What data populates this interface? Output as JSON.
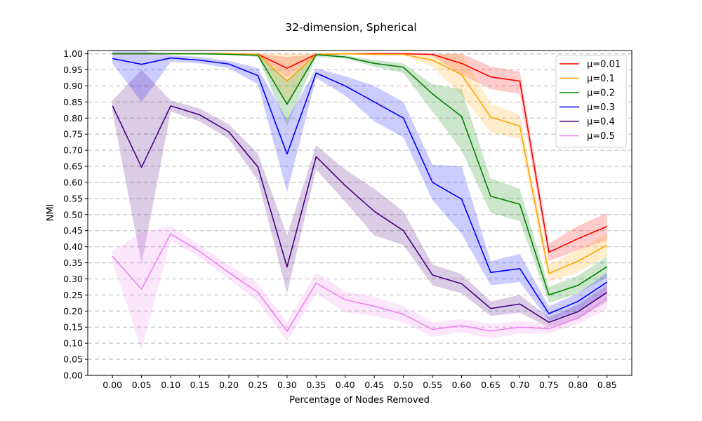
{
  "chart_data": {
    "type": "line",
    "title": "32-dimension, Spherical",
    "xlabel": "Percentage of Nodes Removed",
    "ylabel": "NMI",
    "x": [
      0.0,
      0.05,
      0.1,
      0.15,
      0.2,
      0.25,
      0.3,
      0.35,
      0.4,
      0.45,
      0.5,
      0.55,
      0.6,
      0.65,
      0.7,
      0.75,
      0.8,
      0.85
    ],
    "x_tick_labels": [
      "0.00",
      "0.05",
      "0.10",
      "0.15",
      "0.20",
      "0.25",
      "0.30",
      "0.35",
      "0.40",
      "0.45",
      "0.50",
      "0.55",
      "0.60",
      "0.65",
      "0.70",
      "0.75",
      "0.80",
      "0.85"
    ],
    "y_ticks": [
      0.0,
      0.05,
      0.1,
      0.15,
      0.2,
      0.25,
      0.3,
      0.35,
      0.4,
      0.45,
      0.5,
      0.55,
      0.6,
      0.65,
      0.7,
      0.75,
      0.8,
      0.85,
      0.9,
      0.95,
      1.0
    ],
    "y_tick_labels": [
      "0.00",
      "0.05",
      "0.10",
      "0.15",
      "0.20",
      "0.25",
      "0.30",
      "0.35",
      "0.40",
      "0.45",
      "0.50",
      "0.55",
      "0.60",
      "0.65",
      "0.70",
      "0.75",
      "0.80",
      "0.85",
      "0.90",
      "0.95",
      "1.00"
    ],
    "ylim": [
      0.0,
      1.01
    ],
    "xlim": [
      -0.0425,
      0.8925
    ],
    "grid": "horizontal dashed",
    "legend_position": "top-right",
    "series": [
      {
        "name": "μ=0.01",
        "color": "#ff0000",
        "values": [
          1.0,
          1.0,
          1.0,
          1.0,
          1.0,
          0.998,
          0.955,
          0.998,
          1.0,
          1.0,
          1.0,
          0.998,
          0.97,
          0.928,
          0.915,
          0.383,
          0.425,
          0.463
        ],
        "lower": [
          1.0,
          1.0,
          1.0,
          1.0,
          1.0,
          0.996,
          0.925,
          0.996,
          1.0,
          1.0,
          1.0,
          0.993,
          0.935,
          0.89,
          0.875,
          0.355,
          0.39,
          0.42
        ],
        "upper": [
          1.0,
          1.0,
          1.0,
          1.0,
          1.0,
          1.0,
          0.99,
          1.0,
          1.0,
          1.0,
          1.0,
          1.0,
          1.0,
          0.96,
          0.945,
          0.41,
          0.465,
          0.505
        ]
      },
      {
        "name": "μ=0.1",
        "color": "#ffa500",
        "values": [
          1.0,
          1.0,
          1.0,
          1.0,
          1.0,
          0.998,
          0.915,
          0.998,
          1.0,
          0.998,
          0.998,
          0.98,
          0.935,
          0.803,
          0.775,
          0.317,
          0.355,
          0.405
        ],
        "lower": [
          1.0,
          1.0,
          1.0,
          1.0,
          1.0,
          0.995,
          0.845,
          0.995,
          0.998,
          0.995,
          0.995,
          0.96,
          0.87,
          0.755,
          0.735,
          0.29,
          0.32,
          0.37
        ],
        "upper": [
          1.0,
          1.0,
          1.0,
          1.0,
          1.0,
          1.0,
          1.0,
          1.0,
          1.0,
          1.0,
          1.0,
          0.998,
          1.0,
          0.845,
          0.81,
          0.345,
          0.39,
          0.44
        ]
      },
      {
        "name": "μ=0.2",
        "color": "#008000",
        "values": [
          1.0,
          1.0,
          1.0,
          1.0,
          0.998,
          0.995,
          0.843,
          0.997,
          0.99,
          0.97,
          0.958,
          0.875,
          0.805,
          0.557,
          0.532,
          0.25,
          0.28,
          0.338
        ],
        "lower": [
          1.0,
          1.0,
          1.0,
          1.0,
          0.996,
          0.99,
          0.775,
          0.99,
          0.985,
          0.96,
          0.94,
          0.82,
          0.7,
          0.505,
          0.48,
          0.225,
          0.255,
          0.305
        ],
        "upper": [
          1.0,
          1.0,
          1.0,
          1.0,
          1.0,
          1.0,
          0.92,
          1.0,
          0.995,
          0.98,
          0.97,
          0.905,
          0.89,
          0.612,
          0.58,
          0.275,
          0.31,
          0.37
        ]
      },
      {
        "name": "μ=0.3",
        "color": "#0000ff",
        "values": [
          0.985,
          0.967,
          0.987,
          0.98,
          0.968,
          0.932,
          0.688,
          0.94,
          0.9,
          0.85,
          0.8,
          0.6,
          0.548,
          0.32,
          0.332,
          0.192,
          0.23,
          0.29
        ],
        "lower": [
          0.97,
          0.85,
          0.975,
          0.97,
          0.955,
          0.905,
          0.57,
          0.925,
          0.87,
          0.79,
          0.74,
          0.545,
          0.44,
          0.28,
          0.29,
          0.17,
          0.2,
          0.26
        ],
        "upper": [
          1.01,
          1.01,
          0.995,
          0.99,
          0.978,
          0.955,
          0.795,
          0.955,
          0.93,
          0.9,
          0.85,
          0.655,
          0.65,
          0.355,
          0.378,
          0.215,
          0.255,
          0.32
        ]
      },
      {
        "name": "μ=0.4",
        "color": "#4b0082",
        "values": [
          0.838,
          0.647,
          0.838,
          0.81,
          0.757,
          0.648,
          0.337,
          0.68,
          0.59,
          0.51,
          0.45,
          0.312,
          0.285,
          0.208,
          0.222,
          0.165,
          0.198,
          0.258
        ],
        "lower": [
          0.82,
          0.345,
          0.82,
          0.79,
          0.735,
          0.605,
          0.255,
          0.64,
          0.54,
          0.435,
          0.405,
          0.28,
          0.255,
          0.185,
          0.195,
          0.15,
          0.175,
          0.23
        ],
        "upper": [
          0.855,
          0.95,
          0.855,
          0.83,
          0.78,
          0.69,
          0.435,
          0.715,
          0.64,
          0.58,
          0.51,
          0.345,
          0.315,
          0.23,
          0.25,
          0.18,
          0.22,
          0.28
        ]
      },
      {
        "name": "μ=0.5",
        "color": "#ee82ee",
        "values": [
          0.37,
          0.268,
          0.44,
          0.385,
          0.32,
          0.258,
          0.137,
          0.287,
          0.235,
          0.215,
          0.19,
          0.143,
          0.155,
          0.138,
          0.15,
          0.145,
          0.178,
          0.24
        ],
        "lower": [
          0.355,
          0.08,
          0.42,
          0.365,
          0.3,
          0.23,
          0.105,
          0.255,
          0.195,
          0.185,
          0.165,
          0.12,
          0.135,
          0.115,
          0.13,
          0.13,
          0.16,
          0.205
        ],
        "upper": [
          0.385,
          0.445,
          0.465,
          0.405,
          0.345,
          0.285,
          0.165,
          0.32,
          0.26,
          0.245,
          0.215,
          0.165,
          0.175,
          0.16,
          0.17,
          0.16,
          0.195,
          0.275
        ]
      }
    ]
  }
}
